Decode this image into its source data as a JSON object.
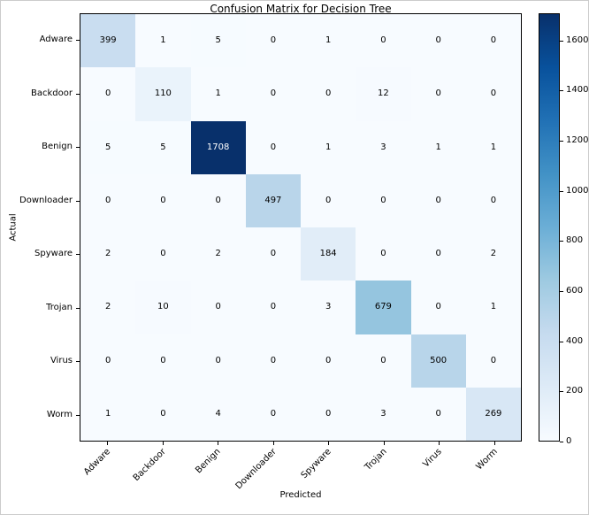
{
  "chart_data": {
    "type": "heatmap",
    "title": "Confusion Matrix for Decision Tree",
    "xlabel": "Predicted",
    "ylabel": "Actual",
    "categories": [
      "Adware",
      "Backdoor",
      "Benign",
      "Downloader",
      "Spyware",
      "Trojan",
      "Virus",
      "Worm"
    ],
    "matrix": [
      [
        399,
        1,
        5,
        0,
        1,
        0,
        0,
        0
      ],
      [
        0,
        110,
        1,
        0,
        0,
        12,
        0,
        0
      ],
      [
        5,
        5,
        1708,
        0,
        1,
        3,
        1,
        1
      ],
      [
        0,
        0,
        0,
        497,
        0,
        0,
        0,
        0
      ],
      [
        2,
        0,
        2,
        0,
        184,
        0,
        0,
        2
      ],
      [
        2,
        10,
        0,
        0,
        3,
        679,
        0,
        1
      ],
      [
        0,
        0,
        0,
        0,
        0,
        0,
        500,
        0
      ],
      [
        1,
        0,
        4,
        0,
        0,
        3,
        0,
        269
      ]
    ],
    "vmin": 0,
    "vmax": 1708,
    "colormap": "Blues",
    "colormap_stops": [
      "#f7fbff",
      "#deebf7",
      "#c6dbef",
      "#9ecae1",
      "#6baed6",
      "#4292c6",
      "#2171b5",
      "#08519c",
      "#08306b"
    ],
    "colorbar_ticks": [
      0,
      200,
      400,
      600,
      800,
      1000,
      1200,
      1400,
      1600
    ],
    "annotation_text_colors": {
      "light": "#000000",
      "dark": "#ffffff"
    },
    "axis_color": "#000000",
    "legend_position": "right-colorbar",
    "grid": false
  }
}
